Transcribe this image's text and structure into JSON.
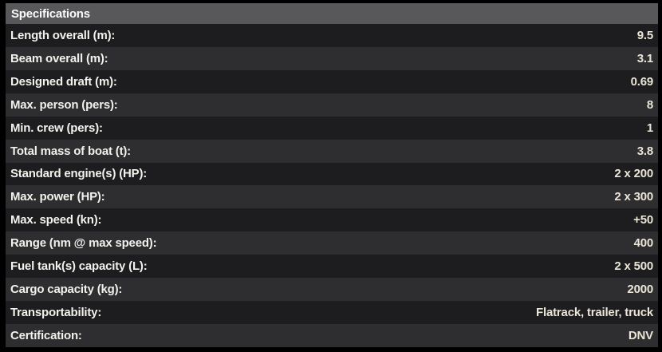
{
  "table": {
    "title": "Specifications",
    "rows": [
      {
        "label": "Length overall (m):",
        "value": "9.5"
      },
      {
        "label": "Beam overall (m):",
        "value": "3.1"
      },
      {
        "label": "Designed draft (m):",
        "value": "0.69"
      },
      {
        "label": "Max. person (pers):",
        "value": "8"
      },
      {
        "label": "Min. crew (pers):",
        "value": "1"
      },
      {
        "label": "Total mass of boat (t):",
        "value": "3.8"
      },
      {
        "label": "Standard engine(s) (HP):",
        "value": "2 x 200"
      },
      {
        "label": "Max. power (HP):",
        "value": "2 x 300"
      },
      {
        "label": "Max. speed (kn):",
        "value": "+50"
      },
      {
        "label": "Range (nm @ max speed):",
        "value": "400"
      },
      {
        "label": "Fuel tank(s) capacity (L):",
        "value": "2 x 500"
      },
      {
        "label": "Cargo capacity (kg):",
        "value": "2000"
      },
      {
        "label": "Transportability:",
        "value": "Flatrack, trailer, truck"
      },
      {
        "label": "Certification:",
        "value": "DNV"
      }
    ]
  },
  "colors": {
    "frame": "#000000",
    "header_bg": "#58585a",
    "row_odd_bg": "#1d1d1f",
    "row_even_bg": "#2e2e30",
    "title_color": "#fafafa",
    "label_color": "#f3f1ec",
    "value_color": "#ebe5d8"
  }
}
